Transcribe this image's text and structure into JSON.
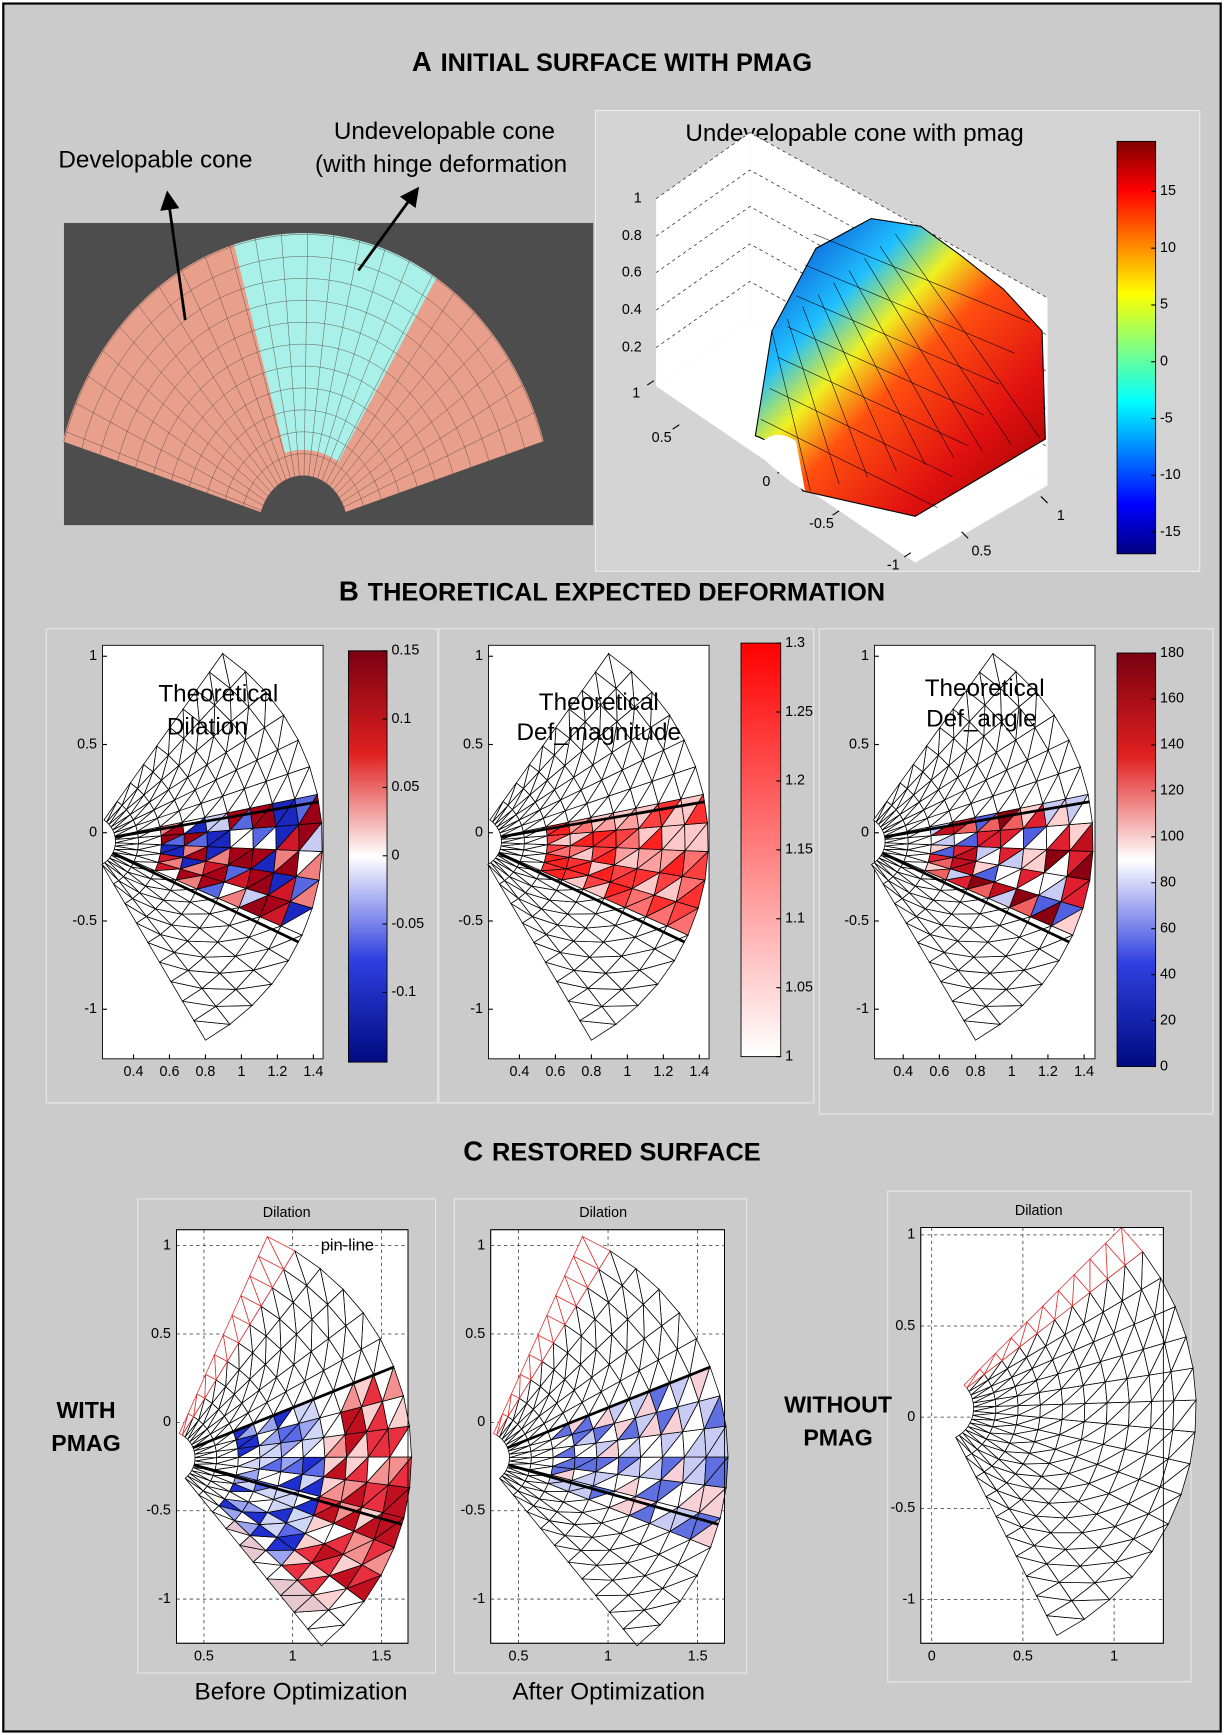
{
  "figure": {
    "sections": [
      {
        "letter": "A",
        "title": "INITIAL SURFACE WITH PMAG"
      },
      {
        "letter": "B",
        "title": "THEORETICAL EXPECTED DEFORMATION"
      },
      {
        "letter": "C",
        "title": "RESTORED SURFACE"
      }
    ],
    "panel_a": {
      "labels": [
        "Developable cone",
        "Undevelopable cone",
        "(with hinge deformation"
      ],
      "plot_title": "Undevelopable cone with pmag",
      "z_ticks": [
        1,
        0.8,
        0.6,
        0.4,
        0.2
      ],
      "y_ticks": [
        1,
        0.5,
        0,
        -0.5,
        -1
      ],
      "x_ticks": [
        0.5,
        1
      ],
      "colorbar": {
        "lim": [
          -16.9,
          19.4
        ],
        "ticks": [
          15,
          10,
          5,
          0,
          -5,
          -10,
          -15
        ]
      }
    },
    "panel_b": [
      {
        "title": [
          "Theoretical",
          "Dilation"
        ],
        "xlim": [
          0.228,
          1.454
        ],
        "ylim": [
          -1.281,
          1.062
        ],
        "xticks": [
          0.4,
          0.6,
          0.8,
          1,
          1.2,
          1.4
        ],
        "yticks": [
          1,
          0.5,
          0,
          -0.5,
          -1
        ],
        "colorbar": {
          "lim": [
            -0.151,
            0.15
          ],
          "ticks": [
            0.15,
            0.1,
            0.05,
            0,
            -0.05,
            -0.1
          ]
        }
      },
      {
        "title": [
          "Theoretical",
          "Def_magnitude"
        ],
        "xlim": [
          0.228,
          1.454
        ],
        "ylim": [
          -1.281,
          1.062
        ],
        "xticks": [
          0.4,
          0.6,
          0.8,
          1,
          1.2,
          1.4
        ],
        "yticks": [
          1,
          0.5,
          0,
          -0.5,
          -1
        ],
        "colorbar": {
          "lim": [
            1,
            1.3
          ],
          "ticks": [
            1.3,
            1.25,
            1.2,
            1.15,
            1.1,
            1.05,
            1
          ]
        }
      },
      {
        "title": [
          "Theoretical",
          "Def_angle"
        ],
        "xlim": [
          0.241,
          1.46
        ],
        "ylim": [
          -1.281,
          1.062
        ],
        "xticks": [
          0.4,
          0.6,
          0.8,
          1,
          1.2,
          1.4
        ],
        "yticks": [
          1,
          0.5,
          0,
          -0.5,
          -1
        ],
        "colorbar": {
          "lim": [
            0,
            180
          ],
          "ticks": [
            180,
            160,
            140,
            120,
            100,
            80,
            60,
            40,
            20,
            0
          ]
        }
      }
    ],
    "panel_c": {
      "row_labels": [
        [
          "WITH",
          "PMAG"
        ],
        [
          "WITHOUT",
          "PMAG"
        ]
      ],
      "plots": [
        {
          "title": "Dilation",
          "annotation": "pin-line",
          "xlim": [
            0.345,
            1.65
          ],
          "ylim": [
            -1.25,
            1.09
          ],
          "xticks": [
            0.5,
            1,
            1.5
          ],
          "yticks": [
            1,
            0.5,
            0,
            -0.5,
            -1
          ],
          "caption": "Before Optimization"
        },
        {
          "title": "Dilation",
          "xlim": [
            0.345,
            1.65
          ],
          "ylim": [
            -1.25,
            1.09
          ],
          "xticks": [
            0.5,
            1,
            1.5
          ],
          "yticks": [
            1,
            0.5,
            0,
            -0.5,
            -1
          ],
          "caption": "After Optimization"
        },
        {
          "title": "Dilation",
          "xlim": [
            -0.06,
            1.27
          ],
          "ylim": [
            -1.24,
            1.04
          ],
          "xticks": [
            0,
            0.5,
            1
          ],
          "yticks": [
            1,
            0.5,
            0,
            -0.5,
            -1
          ]
        }
      ]
    }
  }
}
